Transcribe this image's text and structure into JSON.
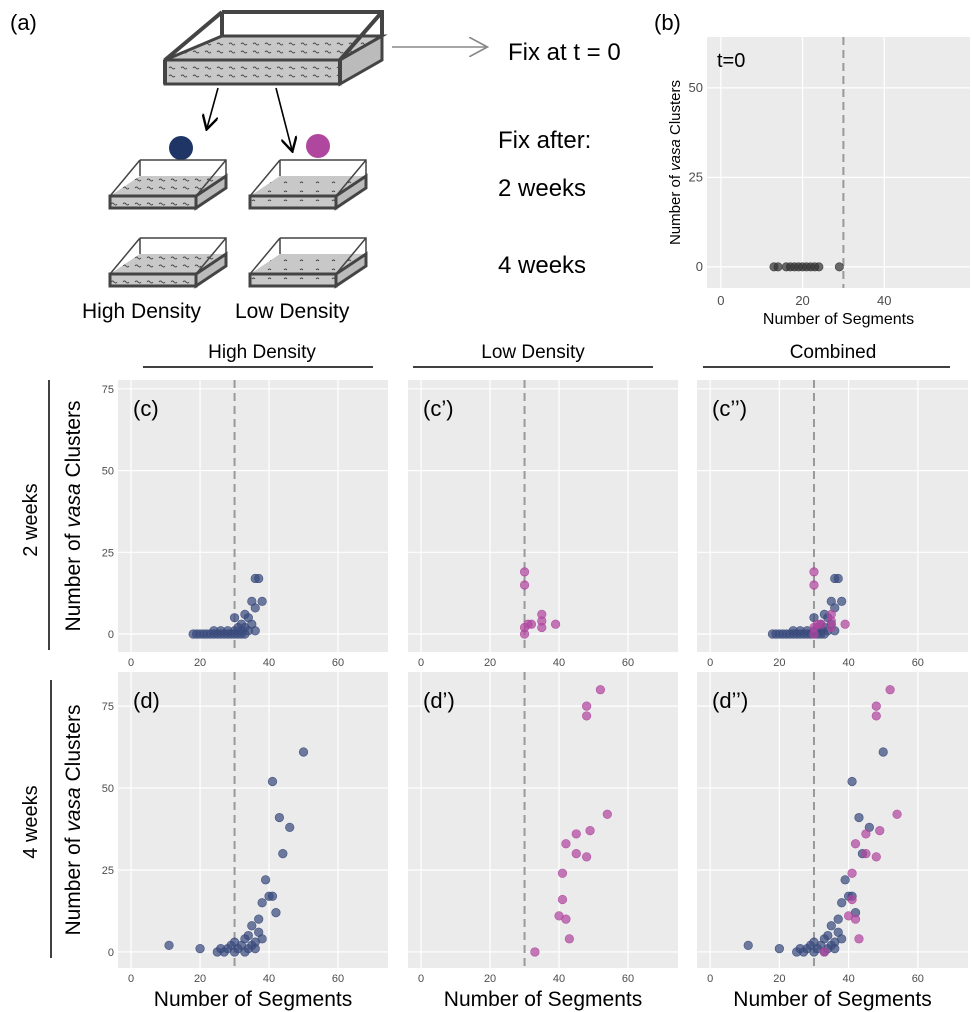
{
  "diagram": {
    "label": "(a)",
    "fix_t0": "Fix at t = 0",
    "fix_after": "Fix after:",
    "weeks2": "2 weeks",
    "weeks4": "4 weeks",
    "high": "High Density",
    "low": "Low Density"
  },
  "column_headers": [
    "High Density",
    "Low Density",
    "Combined"
  ],
  "row_labels": [
    "2 weeks",
    "4 weeks"
  ],
  "chart_data": [
    {
      "type": "scatter",
      "panel_label": "(b)",
      "annotation": "t=0",
      "xlabel": "Number of Segments",
      "ylabel": [
        "Number of ",
        "vasa",
        " Clusters"
      ],
      "xlim": [
        -3.4,
        61
      ],
      "ylim": [
        -5.9,
        64.2
      ],
      "xticks": [
        0,
        20,
        40
      ],
      "yticks": [
        0,
        25,
        50
      ],
      "grid": true,
      "vline": 30,
      "series": [
        {
          "color": "#333333",
          "x": [
            13,
            14,
            16,
            17,
            18,
            19,
            20,
            21,
            22,
            23,
            24,
            29
          ],
          "values": [
            0,
            0,
            0,
            0,
            0,
            0,
            0,
            0,
            0,
            0,
            0,
            0
          ]
        }
      ]
    },
    {
      "type": "scatter",
      "panel_label": "(c)",
      "ylabel": [
        "Number of ",
        "vasa",
        " Clusters"
      ],
      "xlim": [
        -3.8,
        74.5
      ],
      "ylim": [
        -5.5,
        77.7
      ],
      "xticks": [
        0,
        20,
        40,
        60
      ],
      "yticks": [
        0,
        25,
        50,
        75
      ],
      "grid": true,
      "vline": 30,
      "series": [
        {
          "color": "#3a4b7d",
          "x": [
            18,
            19,
            20,
            21,
            22,
            23,
            24,
            25,
            26,
            27,
            28,
            29,
            30,
            31,
            32,
            33,
            24,
            26,
            28,
            30,
            32,
            34,
            36,
            31,
            33,
            32,
            35,
            30,
            34,
            33,
            36,
            35,
            38,
            36,
            37
          ],
          "values": [
            0,
            0,
            0,
            0,
            0,
            0,
            0,
            0,
            0,
            0,
            0,
            0,
            0,
            0,
            0,
            0,
            1,
            1,
            1,
            1,
            1,
            1,
            1,
            2,
            2,
            3,
            3,
            5,
            5,
            6,
            8,
            10,
            10,
            17,
            17
          ]
        }
      ]
    },
    {
      "type": "scatter",
      "panel_label": "(c’)",
      "ytick_labels": false,
      "xlim": [
        -3.8,
        74.5
      ],
      "ylim": [
        -5.5,
        77.7
      ],
      "xticks": [
        0,
        20,
        40,
        60
      ],
      "yticks": [
        0,
        25,
        50,
        75
      ],
      "grid": true,
      "vline": 30,
      "series": [
        {
          "color": "#b0479f",
          "x": [
            30,
            30,
            30,
            30,
            31,
            32,
            35,
            35,
            35,
            39
          ],
          "values": [
            19,
            15,
            0,
            2,
            3,
            3,
            6,
            4,
            2,
            3
          ]
        }
      ]
    },
    {
      "type": "scatter",
      "panel_label": "(c’’)",
      "ytick_labels": false,
      "xlim": [
        -3.8,
        74.5
      ],
      "ylim": [
        -5.5,
        77.7
      ],
      "xticks": [
        0,
        20,
        40,
        60
      ],
      "yticks": [
        0,
        25,
        50,
        75
      ],
      "grid": true,
      "vline": 30,
      "series": [
        {
          "color": "#3a4b7d",
          "x": [
            18,
            19,
            20,
            21,
            22,
            23,
            24,
            25,
            26,
            27,
            28,
            29,
            30,
            31,
            32,
            33,
            24,
            26,
            28,
            30,
            32,
            34,
            36,
            31,
            33,
            32,
            35,
            30,
            34,
            33,
            36,
            35,
            38,
            36,
            37
          ],
          "values": [
            0,
            0,
            0,
            0,
            0,
            0,
            0,
            0,
            0,
            0,
            0,
            0,
            0,
            0,
            0,
            0,
            1,
            1,
            1,
            1,
            1,
            1,
            1,
            2,
            2,
            3,
            3,
            5,
            5,
            6,
            8,
            10,
            10,
            17,
            17
          ]
        },
        {
          "color": "#b0479f",
          "x": [
            30,
            30,
            30,
            30,
            31,
            32,
            35,
            35,
            35,
            39
          ],
          "values": [
            19,
            15,
            0,
            2,
            3,
            3,
            6,
            4,
            2,
            3
          ]
        }
      ]
    },
    {
      "type": "scatter",
      "panel_label": "(d)",
      "xlabel": "Number of Segments",
      "ylabel": [
        "Number of ",
        "vasa",
        " Clusters"
      ],
      "xlim": [
        -3.8,
        74.5
      ],
      "ylim": [
        -4.9,
        85.4
      ],
      "xticks": [
        0,
        20,
        40,
        60
      ],
      "yticks": [
        0,
        25,
        50,
        75
      ],
      "grid": true,
      "vline": 30,
      "series": [
        {
          "color": "#3a4b7d",
          "x": [
            11,
            20,
            25,
            26,
            27,
            28,
            29,
            30,
            30,
            31,
            32,
            33,
            33,
            34,
            35,
            35,
            36,
            37,
            37,
            38,
            39,
            40,
            41,
            42,
            41,
            43,
            44,
            46,
            50,
            36,
            38,
            34
          ],
          "values": [
            2,
            1,
            0,
            1,
            0,
            1,
            2,
            0,
            3,
            1,
            2,
            0,
            4,
            5,
            2,
            8,
            3,
            10,
            6,
            15,
            22,
            17,
            17,
            12,
            52,
            41,
            30,
            38,
            61,
            1,
            4,
            1
          ]
        }
      ]
    },
    {
      "type": "scatter",
      "panel_label": "(d’)",
      "xlabel": "Number of Segments",
      "ytick_labels": false,
      "xlim": [
        -3.8,
        74.5
      ],
      "ylim": [
        -4.9,
        85.4
      ],
      "xticks": [
        0,
        20,
        40,
        60
      ],
      "yticks": [
        0,
        25,
        50,
        75
      ],
      "grid": true,
      "vline": 30,
      "series": [
        {
          "color": "#b0479f",
          "x": [
            33,
            40,
            41,
            41,
            42,
            42,
            43,
            45,
            45,
            48,
            48,
            48,
            49,
            52,
            54
          ],
          "values": [
            0,
            11,
            16,
            24,
            33,
            10,
            4,
            36,
            30,
            75,
            72,
            29,
            37,
            80,
            42
          ]
        }
      ]
    },
    {
      "type": "scatter",
      "panel_label": "(d’’)",
      "xlabel": "Number of Segments",
      "ytick_labels": false,
      "xlim": [
        -3.8,
        74.5
      ],
      "ylim": [
        -4.9,
        85.4
      ],
      "xticks": [
        0,
        20,
        40,
        60
      ],
      "yticks": [
        0,
        25,
        50,
        75
      ],
      "grid": true,
      "vline": 30,
      "series": [
        {
          "color": "#3a4b7d",
          "x": [
            11,
            20,
            25,
            26,
            27,
            28,
            29,
            30,
            30,
            31,
            32,
            33,
            33,
            34,
            35,
            35,
            36,
            37,
            37,
            38,
            39,
            40,
            41,
            42,
            41,
            43,
            44,
            46,
            50,
            36,
            38,
            34
          ],
          "values": [
            2,
            1,
            0,
            1,
            0,
            1,
            2,
            0,
            3,
            1,
            2,
            0,
            4,
            5,
            2,
            8,
            3,
            10,
            6,
            15,
            22,
            17,
            17,
            12,
            52,
            41,
            30,
            38,
            61,
            1,
            4,
            1
          ]
        },
        {
          "color": "#b0479f",
          "x": [
            33,
            40,
            41,
            41,
            42,
            42,
            43,
            45,
            45,
            48,
            48,
            48,
            49,
            52,
            54
          ],
          "values": [
            0,
            11,
            16,
            24,
            33,
            10,
            4,
            36,
            30,
            75,
            72,
            29,
            37,
            80,
            42
          ]
        }
      ]
    }
  ]
}
